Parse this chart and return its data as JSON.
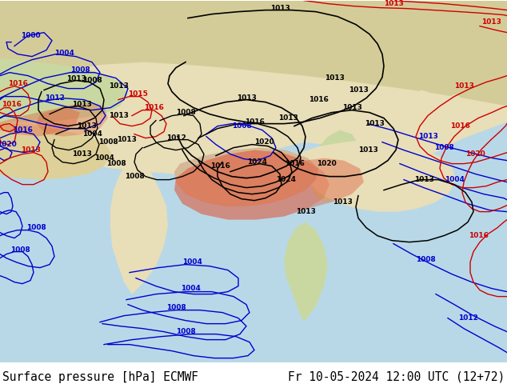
{
  "title_left": "Surface pressure [hPa] ECMWF",
  "title_right": "Fr 10-05-2024 12:00 UTC (12+72)",
  "bg_color": "#ffffff",
  "text_color": "#000000",
  "title_fontsize": 10.5,
  "figsize": [
    6.34,
    4.9
  ],
  "dpi": 100,
  "isobar_blue_color": "#0000cc",
  "isobar_red_color": "#cc0000",
  "isobar_black_color": "#000000",
  "sea_color": "#b8d8e8",
  "land_color": "#e8deb8",
  "highland_color": "#c8b888",
  "tibet_color": "#d4b898",
  "red_area_color": "#e05030",
  "red_area_alpha": 0.55,
  "green_land": "#c8d8a0",
  "dark_green": "#a8c888",
  "water_blue": "#a8c8e0"
}
